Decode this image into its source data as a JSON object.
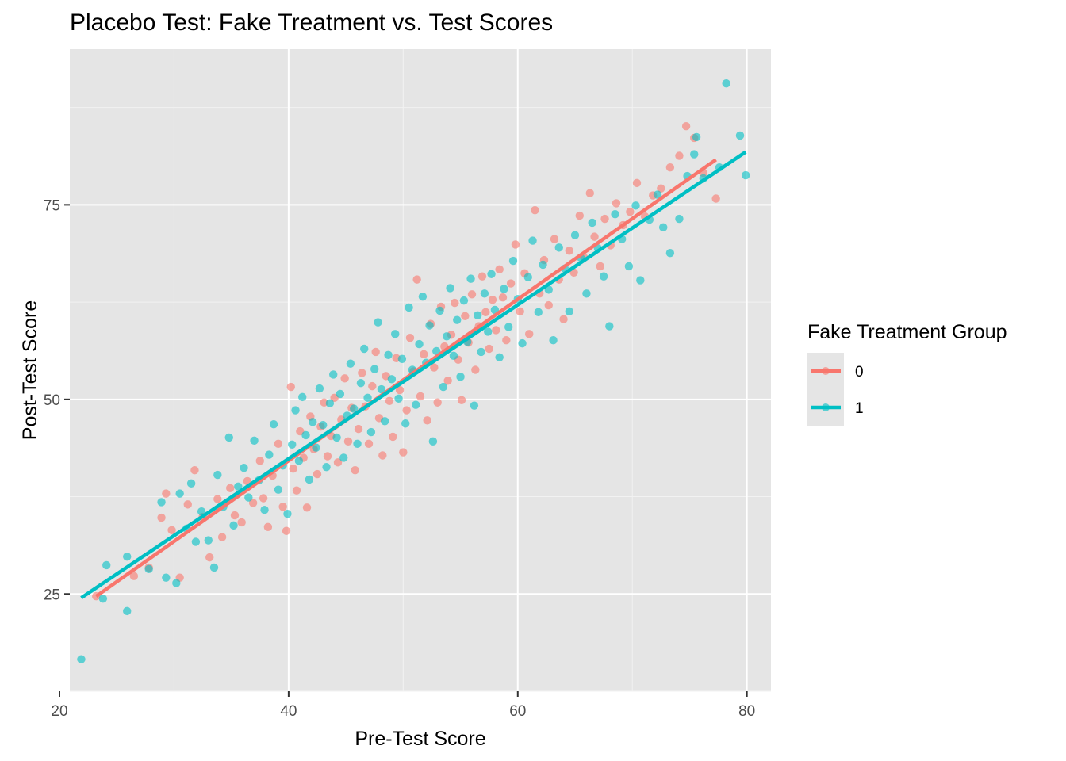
{
  "chart_data": {
    "type": "scatter",
    "title": "Placebo Test: Fake Treatment vs. Test Scores",
    "xlabel": "Pre-Test Score",
    "ylabel": "Post-Test Score",
    "xlim": [
      20.9,
      82.1
    ],
    "ylim": [
      12.5,
      95.0
    ],
    "x_ticks": [
      20,
      40,
      60,
      80
    ],
    "x_tick_labels": [
      "20",
      "40",
      "60",
      "80"
    ],
    "y_ticks": [
      25,
      50,
      75
    ],
    "y_tick_labels": [
      "25",
      "50",
      "75"
    ],
    "grid": true,
    "background": "#e5e5e5",
    "legend": {
      "title": "Fake Treatment Group",
      "position": "right",
      "entries": [
        "0",
        "1"
      ]
    },
    "series": [
      {
        "name": "0",
        "color": "#f8766d",
        "trend_line": {
          "x": [
            23.2,
            77.3
          ],
          "y": [
            24.7,
            80.8
          ]
        },
        "points": [
          [
            23.2,
            24.7
          ],
          [
            26.5,
            27.3
          ],
          [
            27.8,
            28.4
          ],
          [
            28.9,
            34.8
          ],
          [
            29.3,
            37.9
          ],
          [
            29.8,
            33.2
          ],
          [
            30.5,
            27.1
          ],
          [
            31.2,
            36.5
          ],
          [
            31.8,
            40.9
          ],
          [
            32.5,
            34.9
          ],
          [
            33.1,
            29.7
          ],
          [
            33.8,
            37.2
          ],
          [
            34.2,
            32.3
          ],
          [
            34.9,
            38.6
          ],
          [
            35.3,
            35.1
          ],
          [
            35.9,
            34.2
          ],
          [
            36.4,
            39.5
          ],
          [
            36.9,
            36.7
          ],
          [
            37.5,
            42.1
          ],
          [
            37.8,
            37.3
          ],
          [
            38.2,
            33.6
          ],
          [
            38.6,
            40.2
          ],
          [
            39.1,
            44.3
          ],
          [
            39.5,
            36.2
          ],
          [
            39.8,
            33.1
          ],
          [
            40.2,
            51.6
          ],
          [
            40.4,
            41.1
          ],
          [
            40.7,
            38.3
          ],
          [
            41.0,
            45.9
          ],
          [
            41.3,
            42.5
          ],
          [
            41.6,
            36.1
          ],
          [
            41.9,
            47.8
          ],
          [
            42.2,
            43.6
          ],
          [
            42.5,
            40.4
          ],
          [
            42.8,
            46.5
          ],
          [
            43.1,
            49.6
          ],
          [
            43.4,
            42.7
          ],
          [
            43.7,
            45.3
          ],
          [
            44.0,
            50.2
          ],
          [
            44.3,
            41.9
          ],
          [
            44.6,
            47.4
          ],
          [
            44.9,
            52.7
          ],
          [
            45.2,
            44.6
          ],
          [
            45.5,
            48.9
          ],
          [
            45.8,
            40.9
          ],
          [
            46.1,
            46.2
          ],
          [
            46.4,
            53.4
          ],
          [
            46.7,
            49.1
          ],
          [
            47.0,
            44.3
          ],
          [
            47.3,
            51.7
          ],
          [
            47.6,
            56.1
          ],
          [
            47.9,
            47.6
          ],
          [
            48.2,
            42.8
          ],
          [
            48.5,
            53.0
          ],
          [
            48.8,
            49.8
          ],
          [
            49.1,
            45.2
          ],
          [
            49.4,
            55.3
          ],
          [
            49.7,
            51.2
          ],
          [
            50.0,
            43.2
          ],
          [
            50.3,
            48.6
          ],
          [
            50.6,
            57.9
          ],
          [
            50.9,
            53.6
          ],
          [
            51.2,
            65.4
          ],
          [
            51.5,
            50.4
          ],
          [
            51.8,
            55.8
          ],
          [
            52.1,
            47.3
          ],
          [
            52.4,
            59.7
          ],
          [
            52.7,
            54.1
          ],
          [
            53.0,
            49.6
          ],
          [
            53.3,
            61.9
          ],
          [
            53.6,
            56.8
          ],
          [
            53.9,
            52.4
          ],
          [
            54.2,
            58.3
          ],
          [
            54.5,
            62.4
          ],
          [
            54.8,
            55.1
          ],
          [
            55.1,
            49.9
          ],
          [
            55.4,
            60.7
          ],
          [
            55.7,
            57.3
          ],
          [
            56.0,
            63.5
          ],
          [
            56.3,
            53.8
          ],
          [
            56.6,
            59.4
          ],
          [
            56.9,
            65.8
          ],
          [
            57.2,
            61.2
          ],
          [
            57.5,
            56.5
          ],
          [
            57.8,
            62.8
          ],
          [
            58.1,
            58.9
          ],
          [
            58.4,
            66.7
          ],
          [
            58.7,
            63.1
          ],
          [
            59.0,
            57.6
          ],
          [
            59.4,
            64.9
          ],
          [
            59.8,
            69.9
          ],
          [
            60.2,
            61.3
          ],
          [
            60.6,
            66.2
          ],
          [
            61.0,
            58.4
          ],
          [
            61.5,
            74.3
          ],
          [
            61.9,
            63.6
          ],
          [
            62.3,
            67.9
          ],
          [
            62.7,
            62.1
          ],
          [
            63.2,
            70.6
          ],
          [
            63.6,
            65.4
          ],
          [
            64.0,
            60.3
          ],
          [
            64.5,
            69.1
          ],
          [
            64.9,
            66.3
          ],
          [
            65.4,
            73.6
          ],
          [
            65.8,
            68.2
          ],
          [
            66.3,
            76.5
          ],
          [
            66.7,
            70.9
          ],
          [
            67.2,
            67.1
          ],
          [
            67.6,
            73.2
          ],
          [
            68.1,
            69.8
          ],
          [
            68.6,
            75.2
          ],
          [
            69.2,
            72.4
          ],
          [
            69.8,
            74.1
          ],
          [
            70.4,
            77.8
          ],
          [
            71.1,
            73.5
          ],
          [
            71.8,
            76.2
          ],
          [
            72.5,
            77.1
          ],
          [
            73.3,
            79.8
          ],
          [
            74.1,
            81.3
          ],
          [
            74.7,
            85.1
          ],
          [
            75.4,
            83.6
          ],
          [
            76.2,
            79.1
          ],
          [
            77.3,
            75.8
          ]
        ]
      },
      {
        "name": "1",
        "color": "#00bfc4",
        "trend_line": {
          "x": [
            21.9,
            79.9
          ],
          "y": [
            24.5,
            81.8
          ]
        },
        "points": [
          [
            21.9,
            16.6
          ],
          [
            23.8,
            24.4
          ],
          [
            24.1,
            28.7
          ],
          [
            25.9,
            29.8
          ],
          [
            25.9,
            22.8
          ],
          [
            27.8,
            28.2
          ],
          [
            28.9,
            36.8
          ],
          [
            29.3,
            27.1
          ],
          [
            30.2,
            26.4
          ],
          [
            30.5,
            37.9
          ],
          [
            31.1,
            33.4
          ],
          [
            31.5,
            39.2
          ],
          [
            31.9,
            31.7
          ],
          [
            32.4,
            35.6
          ],
          [
            33.0,
            31.9
          ],
          [
            33.5,
            28.4
          ],
          [
            33.8,
            40.3
          ],
          [
            34.3,
            36.2
          ],
          [
            34.8,
            45.1
          ],
          [
            35.2,
            33.8
          ],
          [
            35.6,
            38.8
          ],
          [
            36.1,
            41.2
          ],
          [
            36.5,
            37.4
          ],
          [
            37.0,
            44.7
          ],
          [
            37.4,
            39.6
          ],
          [
            37.9,
            35.8
          ],
          [
            38.3,
            42.9
          ],
          [
            38.7,
            46.8
          ],
          [
            39.1,
            38.4
          ],
          [
            39.5,
            41.5
          ],
          [
            39.9,
            35.3
          ],
          [
            40.3,
            44.2
          ],
          [
            40.6,
            48.6
          ],
          [
            40.9,
            42.1
          ],
          [
            41.2,
            50.3
          ],
          [
            41.5,
            45.4
          ],
          [
            41.8,
            39.7
          ],
          [
            42.1,
            47.1
          ],
          [
            42.4,
            43.8
          ],
          [
            42.7,
            51.4
          ],
          [
            43.0,
            46.7
          ],
          [
            43.3,
            41.3
          ],
          [
            43.6,
            49.5
          ],
          [
            43.9,
            53.2
          ],
          [
            44.2,
            45.1
          ],
          [
            44.5,
            50.7
          ],
          [
            44.8,
            42.5
          ],
          [
            45.1,
            47.9
          ],
          [
            45.4,
            54.6
          ],
          [
            45.7,
            48.8
          ],
          [
            46.0,
            44.3
          ],
          [
            46.3,
            52.1
          ],
          [
            46.6,
            56.5
          ],
          [
            46.9,
            50.2
          ],
          [
            47.2,
            45.8
          ],
          [
            47.5,
            53.9
          ],
          [
            47.8,
            59.9
          ],
          [
            48.1,
            51.3
          ],
          [
            48.4,
            47.2
          ],
          [
            48.7,
            55.7
          ],
          [
            49.0,
            52.6
          ],
          [
            49.3,
            58.4
          ],
          [
            49.6,
            50.1
          ],
          [
            49.9,
            55.2
          ],
          [
            50.2,
            46.9
          ],
          [
            50.5,
            61.8
          ],
          [
            50.8,
            53.8
          ],
          [
            51.1,
            49.3
          ],
          [
            51.4,
            57.1
          ],
          [
            51.7,
            63.2
          ],
          [
            52.0,
            54.7
          ],
          [
            52.3,
            59.5
          ],
          [
            52.6,
            44.6
          ],
          [
            52.9,
            56.2
          ],
          [
            53.2,
            61.4
          ],
          [
            53.5,
            51.6
          ],
          [
            53.8,
            58.1
          ],
          [
            54.1,
            64.3
          ],
          [
            54.4,
            55.6
          ],
          [
            54.7,
            60.2
          ],
          [
            55.0,
            52.9
          ],
          [
            55.3,
            62.7
          ],
          [
            55.6,
            57.4
          ],
          [
            55.9,
            65.5
          ],
          [
            56.2,
            49.2
          ],
          [
            56.5,
            60.8
          ],
          [
            56.8,
            56.1
          ],
          [
            57.1,
            63.6
          ],
          [
            57.4,
            58.7
          ],
          [
            57.7,
            66.1
          ],
          [
            58.0,
            61.5
          ],
          [
            58.4,
            55.4
          ],
          [
            58.8,
            64.2
          ],
          [
            59.2,
            59.3
          ],
          [
            59.6,
            67.8
          ],
          [
            60.0,
            62.9
          ],
          [
            60.4,
            57.2
          ],
          [
            60.9,
            65.7
          ],
          [
            61.3,
            70.4
          ],
          [
            61.8,
            61.2
          ],
          [
            62.2,
            67.3
          ],
          [
            62.7,
            64.1
          ],
          [
            63.1,
            57.6
          ],
          [
            63.6,
            69.5
          ],
          [
            64.1,
            66.8
          ],
          [
            64.5,
            61.3
          ],
          [
            65.0,
            71.1
          ],
          [
            65.5,
            68.2
          ],
          [
            66.0,
            63.6
          ],
          [
            66.5,
            72.7
          ],
          [
            67.0,
            69.4
          ],
          [
            67.5,
            65.8
          ],
          [
            68.0,
            59.4
          ],
          [
            68.5,
            73.8
          ],
          [
            69.1,
            70.6
          ],
          [
            69.7,
            67.1
          ],
          [
            70.3,
            74.9
          ],
          [
            70.7,
            65.3
          ],
          [
            71.5,
            73.1
          ],
          [
            72.2,
            76.3
          ],
          [
            72.7,
            72.1
          ],
          [
            73.3,
            68.8
          ],
          [
            74.1,
            73.2
          ],
          [
            74.8,
            78.7
          ],
          [
            75.4,
            81.5
          ],
          [
            75.6,
            83.7
          ],
          [
            76.2,
            78.4
          ],
          [
            77.6,
            79.8
          ],
          [
            78.2,
            90.6
          ],
          [
            79.4,
            83.9
          ],
          [
            79.9,
            78.8
          ]
        ]
      }
    ]
  }
}
